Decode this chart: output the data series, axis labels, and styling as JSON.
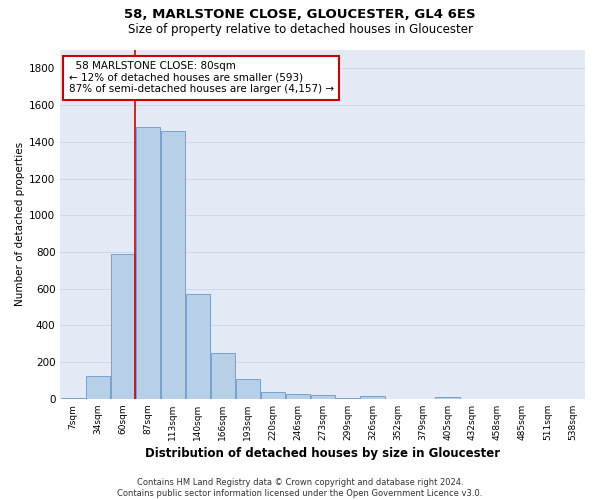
{
  "title": "58, MARLSTONE CLOSE, GLOUCESTER, GL4 6ES",
  "subtitle": "Size of property relative to detached houses in Gloucester",
  "xlabel": "Distribution of detached houses by size in Gloucester",
  "ylabel": "Number of detached properties",
  "bar_color": "#b8cfe8",
  "bar_edge_color": "#6699cc",
  "categories": [
    "7sqm",
    "34sqm",
    "60sqm",
    "87sqm",
    "113sqm",
    "140sqm",
    "166sqm",
    "193sqm",
    "220sqm",
    "246sqm",
    "273sqm",
    "299sqm",
    "326sqm",
    "352sqm",
    "379sqm",
    "405sqm",
    "432sqm",
    "458sqm",
    "485sqm",
    "511sqm",
    "538sqm"
  ],
  "values": [
    5,
    125,
    790,
    1480,
    1460,
    570,
    250,
    110,
    35,
    25,
    20,
    5,
    15,
    0,
    0,
    10,
    0,
    0,
    0,
    0,
    0
  ],
  "ylim": [
    0,
    1900
  ],
  "yticks": [
    0,
    200,
    400,
    600,
    800,
    1000,
    1200,
    1400,
    1600,
    1800
  ],
  "annotation_text": "  58 MARLSTONE CLOSE: 80sqm\n← 12% of detached houses are smaller (593)\n87% of semi-detached houses are larger (4,157) →",
  "vline_color": "#cc0000",
  "annotation_box_color": "#ffffff",
  "annotation_box_edge": "#cc0000",
  "grid_color": "#ccd8ec",
  "bg_color": "#e4eaf5",
  "footer": "Contains HM Land Registry data © Crown copyright and database right 2024.\nContains public sector information licensed under the Open Government Licence v3.0."
}
